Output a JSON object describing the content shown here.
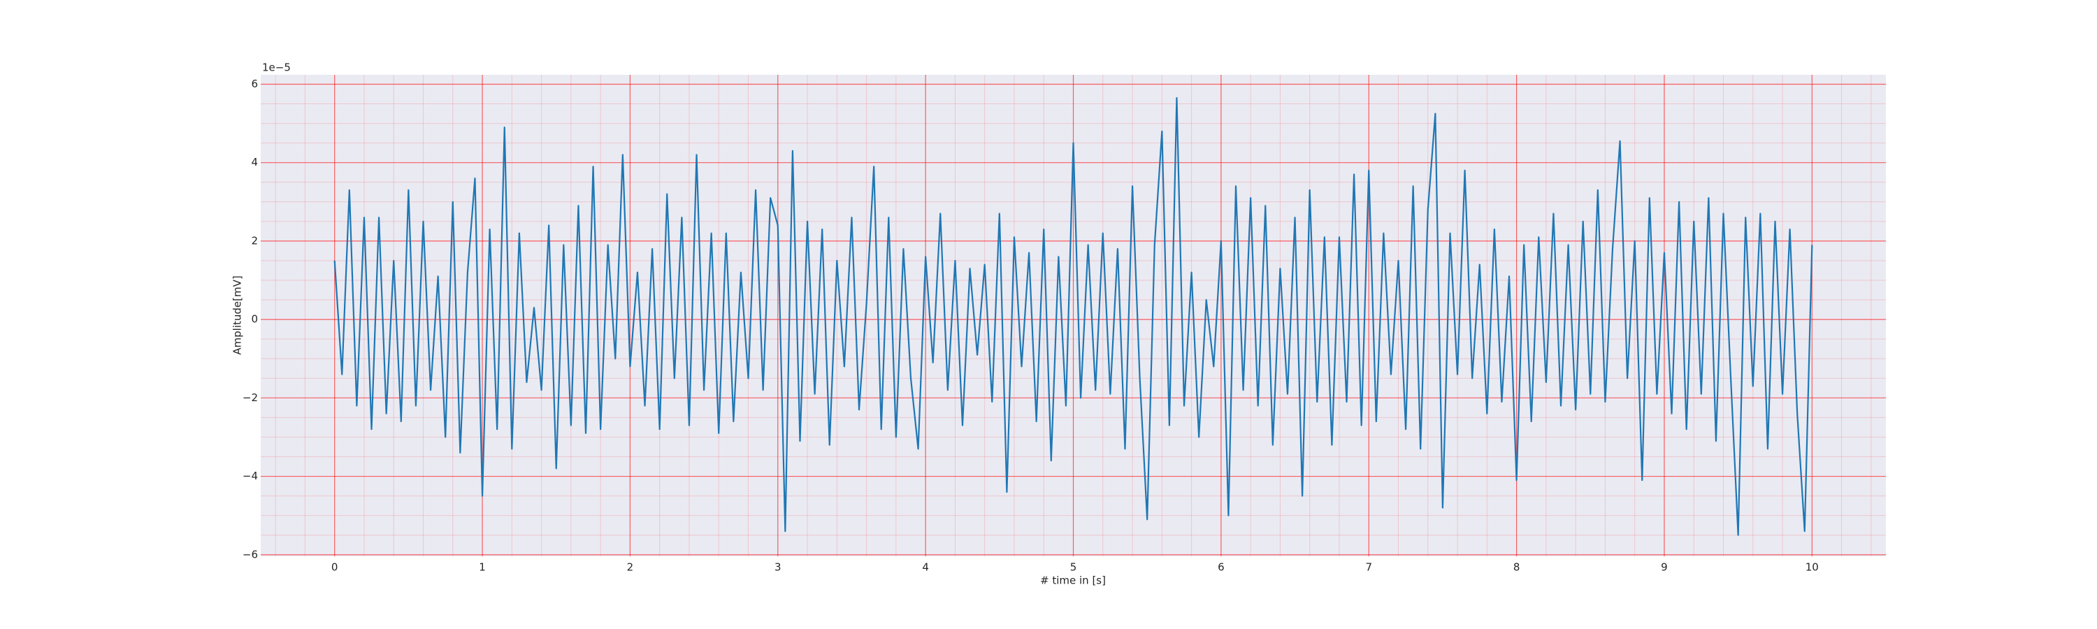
{
  "chart_data": {
    "type": "line",
    "xlabel": "# time in [s]",
    "ylabel": "Amplitude[mV]",
    "y_offset_label": "1e−5",
    "x": [
      0,
      0.05,
      0.1,
      0.15,
      0.2,
      0.25,
      0.3,
      0.35,
      0.4,
      0.45,
      0.5,
      0.55,
      0.6,
      0.65,
      0.7,
      0.75,
      0.8,
      0.85,
      0.9,
      0.95,
      1,
      1.05,
      1.1,
      1.15,
      1.2,
      1.25,
      1.3,
      1.35,
      1.4,
      1.45,
      1.5,
      1.55,
      1.6,
      1.65,
      1.7,
      1.75,
      1.8,
      1.85,
      1.9,
      1.95,
      2,
      2.05,
      2.1,
      2.15,
      2.2,
      2.25,
      2.3,
      2.35,
      2.4,
      2.45,
      2.5,
      2.55,
      2.6,
      2.65,
      2.7,
      2.75,
      2.8,
      2.85,
      2.9,
      2.95,
      3,
      3.05,
      3.1,
      3.15,
      3.2,
      3.25,
      3.3,
      3.35,
      3.4,
      3.45,
      3.5,
      3.55,
      3.6,
      3.65,
      3.7,
      3.75,
      3.8,
      3.85,
      3.9,
      3.95,
      4,
      4.05,
      4.1,
      4.15,
      4.2,
      4.25,
      4.3,
      4.35,
      4.4,
      4.45,
      4.5,
      4.55,
      4.6,
      4.65,
      4.7,
      4.75,
      4.8,
      4.85,
      4.9,
      4.95,
      5,
      5.05,
      5.1,
      5.15,
      5.2,
      5.25,
      5.3,
      5.35,
      5.4,
      5.45,
      5.5,
      5.55,
      5.6,
      5.65,
      5.7,
      5.75,
      5.8,
      5.85,
      5.9,
      5.95,
      6,
      6.05,
      6.1,
      6.15,
      6.2,
      6.25,
      6.3,
      6.35,
      6.4,
      6.45,
      6.5,
      6.55,
      6.6,
      6.65,
      6.7,
      6.75,
      6.8,
      6.85,
      6.9,
      6.95,
      7,
      7.05,
      7.1,
      7.15,
      7.2,
      7.25,
      7.3,
      7.35,
      7.4,
      7.45,
      7.5,
      7.55,
      7.6,
      7.65,
      7.7,
      7.75,
      7.8,
      7.85,
      7.9,
      7.95,
      8,
      8.05,
      8.1,
      8.15,
      8.2,
      8.25,
      8.3,
      8.35,
      8.4,
      8.45,
      8.5,
      8.55,
      8.6,
      8.65,
      8.7,
      8.75,
      8.8,
      8.85,
      8.9,
      8.95,
      9,
      9.05,
      9.1,
      9.15,
      9.2,
      9.25,
      9.3,
      9.35,
      9.4,
      9.45,
      9.5,
      9.55,
      9.6,
      9.65,
      9.7,
      9.75,
      9.8,
      9.85,
      9.9,
      9.95,
      10
    ],
    "values": [
      1.5e-05,
      -1.4e-05,
      3.3e-05,
      -2.2e-05,
      2.6e-05,
      -2.8e-05,
      2.6e-05,
      -2.4e-05,
      1.5e-05,
      -2.6e-05,
      3.3e-05,
      -2.2e-05,
      2.5e-05,
      -1.8e-05,
      1.1e-05,
      -3e-05,
      3e-05,
      -3.4e-05,
      1.2e-05,
      3.6e-05,
      -4.5e-05,
      2.3e-05,
      -2.8e-05,
      4.9e-05,
      -3.3e-05,
      2.2e-05,
      -1.6e-05,
      3e-06,
      -1.8e-05,
      2.4e-05,
      -3.8e-05,
      1.9e-05,
      -2.7e-05,
      2.9e-05,
      -2.9e-05,
      3.9e-05,
      -2.8e-05,
      1.9e-05,
      -1e-05,
      4.2e-05,
      -1.2e-05,
      1.2e-05,
      -2.2e-05,
      1.8e-05,
      -2.8e-05,
      3.2e-05,
      -1.5e-05,
      2.6e-05,
      -2.7e-05,
      4.2e-05,
      -1.8e-05,
      2.2e-05,
      -2.9e-05,
      2.2e-05,
      -2.6e-05,
      1.2e-05,
      -1.5e-05,
      3.3e-05,
      -1.8e-05,
      3.1e-05,
      2.4e-05,
      -5.4e-05,
      4.3e-05,
      -3.1e-05,
      2.5e-05,
      -1.9e-05,
      2.3e-05,
      -3.2e-05,
      1.5e-05,
      -1.2e-05,
      2.6e-05,
      -2.3e-05,
      4e-06,
      3.9e-05,
      -2.8e-05,
      2.6e-05,
      -3e-05,
      1.8e-05,
      -1.5e-05,
      -3.3e-05,
      1.6e-05,
      -1.1e-05,
      2.7e-05,
      -1.8e-05,
      1.5e-05,
      -2.7e-05,
      1.3e-05,
      -9e-06,
      1.4e-05,
      -2.1e-05,
      2.7e-05,
      -4.4e-05,
      2.1e-05,
      -1.2e-05,
      1.7e-05,
      -2.6e-05,
      2.3e-05,
      -3.6e-05,
      1.6e-05,
      -2.2e-05,
      4.5e-05,
      -2e-05,
      1.9e-05,
      -1.8e-05,
      2.2e-05,
      -1.9e-05,
      1.8e-05,
      -3.3e-05,
      3.4e-05,
      -1.5e-05,
      -5.1e-05,
      1.9e-05,
      4.8e-05,
      -2.7e-05,
      5.65e-05,
      -2.2e-05,
      1.2e-05,
      -3e-05,
      5e-06,
      -1.2e-05,
      2e-05,
      -5e-05,
      3.4e-05,
      -1.8e-05,
      3.1e-05,
      -2.2e-05,
      2.9e-05,
      -3.2e-05,
      1.3e-05,
      -1.9e-05,
      2.6e-05,
      -4.5e-05,
      3.3e-05,
      -2.1e-05,
      2.1e-05,
      -3.2e-05,
      2.1e-05,
      -2.1e-05,
      3.7e-05,
      -2.7e-05,
      3.8e-05,
      -2.6e-05,
      2.2e-05,
      -1.4e-05,
      1.5e-05,
      -2.8e-05,
      3.4e-05,
      -3.3e-05,
      2.8e-05,
      5.25e-05,
      -4.8e-05,
      2.2e-05,
      -1.4e-05,
      3.8e-05,
      -1.5e-05,
      1.4e-05,
      -2.4e-05,
      2.3e-05,
      -2.1e-05,
      1.1e-05,
      -4.1e-05,
      1.9e-05,
      -2.6e-05,
      2.1e-05,
      -1.6e-05,
      2.7e-05,
      -2.2e-05,
      1.9e-05,
      -2.3e-05,
      2.5e-05,
      -1.9e-05,
      3.3e-05,
      -2.1e-05,
      1.8e-05,
      4.55e-05,
      -1.5e-05,
      2e-05,
      -4.1e-05,
      3.1e-05,
      -1.9e-05,
      1.7e-05,
      -2.4e-05,
      3e-05,
      -2.8e-05,
      2.5e-05,
      -1.9e-05,
      3.1e-05,
      -3.1e-05,
      2.7e-05,
      -1.5e-05,
      -5.5e-05,
      2.6e-05,
      -1.7e-05,
      2.7e-05,
      -3.3e-05,
      2.5e-05,
      -1.9e-05,
      2.3e-05,
      -2.4e-05,
      -5.4e-05,
      1.9e-05
    ],
    "color": "#1f77b4",
    "xlim": [
      -0.5,
      10.5
    ],
    "ylim": [
      -6.04e-05,
      6.24e-05
    ],
    "xticks": [
      0,
      1,
      2,
      3,
      4,
      5,
      6,
      7,
      8,
      9,
      10
    ],
    "yticks": [
      {
        "value": -6e-05,
        "label": "−6"
      },
      {
        "value": -4e-05,
        "label": "−4"
      },
      {
        "value": -2e-05,
        "label": "−2"
      },
      {
        "value": 0,
        "label": "0"
      },
      {
        "value": 2e-05,
        "label": "2"
      },
      {
        "value": 4e-05,
        "label": "4"
      },
      {
        "value": 6e-05,
        "label": "6"
      }
    ],
    "xminorticks": [
      -0.4,
      -0.2,
      0.2,
      0.4,
      0.6,
      0.8,
      1.2,
      1.4,
      1.6,
      1.8,
      2.2,
      2.4,
      2.6,
      2.8,
      3.2,
      3.4,
      3.6,
      3.8,
      4.2,
      4.4,
      4.6,
      4.8,
      5.2,
      5.4,
      5.6,
      5.8,
      6.2,
      6.4,
      6.6,
      6.8,
      7.2,
      7.4,
      7.6,
      7.8,
      8.2,
      8.4,
      8.6,
      8.8,
      9.2,
      9.4,
      9.6,
      9.8,
      10.2,
      10.4
    ],
    "yminorticks": [
      -5.5e-05,
      -5e-05,
      -4.5e-05,
      -3.5e-05,
      -3e-05,
      -2.5e-05,
      -1.5e-05,
      -1e-05,
      -5e-06,
      5e-06,
      1e-05,
      1.5e-05,
      2.5e-05,
      3e-05,
      3.5e-05,
      4.5e-05,
      5e-05,
      5.5e-05
    ],
    "grid": true,
    "grid_color": "#ff0000",
    "background": "#eaeaf2"
  }
}
